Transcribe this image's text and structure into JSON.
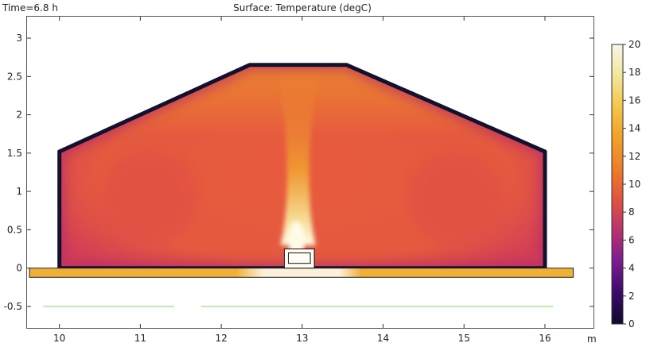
{
  "header": {
    "time_label": "Time=6.8 h",
    "title": "Surface: Temperature (degC)"
  },
  "chart_data": {
    "type": "heatmap",
    "title": "Surface: Temperature (degC)",
    "xlabel": "m",
    "ylabel": "",
    "xlim": [
      9.6,
      16.6
    ],
    "ylim": [
      -0.78,
      3.28
    ],
    "x_ticks": [
      10,
      11,
      12,
      13,
      14,
      15,
      16
    ],
    "y_ticks": [
      -0.5,
      0,
      0.5,
      1,
      1.5,
      2,
      2.5,
      3
    ],
    "colorbar": {
      "min": 0,
      "max": 20,
      "ticks": [
        0,
        2,
        4,
        6,
        8,
        10,
        12,
        14,
        16,
        18,
        20
      ],
      "colormap": [
        "#0b0b2e",
        "#3d0a6b",
        "#7a1c8f",
        "#b8326f",
        "#e0533f",
        "#ef7d2a",
        "#f2a12a",
        "#f4c64a",
        "#f1e79a",
        "#f7f6e8"
      ]
    },
    "house_outline": {
      "x": [
        10.0,
        10.0,
        12.35,
        13.55,
        16.0,
        16.0
      ],
      "y": [
        0.0,
        1.52,
        2.65,
        2.65,
        1.52,
        0.0
      ],
      "wall_temperature": 0.5,
      "interior_temperature": 9.5
    },
    "heater": {
      "x": [
        12.78,
        13.15
      ],
      "y": [
        0.0,
        0.25
      ],
      "temperature": 20
    },
    "floor_slab": {
      "x": [
        9.63,
        16.35
      ],
      "y": [
        -0.12,
        0.0
      ],
      "temperature": 14
    },
    "plume": {
      "x_center": 12.95,
      "peak_temperature": 20
    },
    "ground_lines": [
      {
        "x": [
          9.8,
          11.42
        ],
        "y": -0.5,
        "color": "#7ddc6a"
      },
      {
        "x": [
          11.75,
          16.1
        ],
        "y": -0.5,
        "color": "#7ddc6a"
      }
    ]
  }
}
